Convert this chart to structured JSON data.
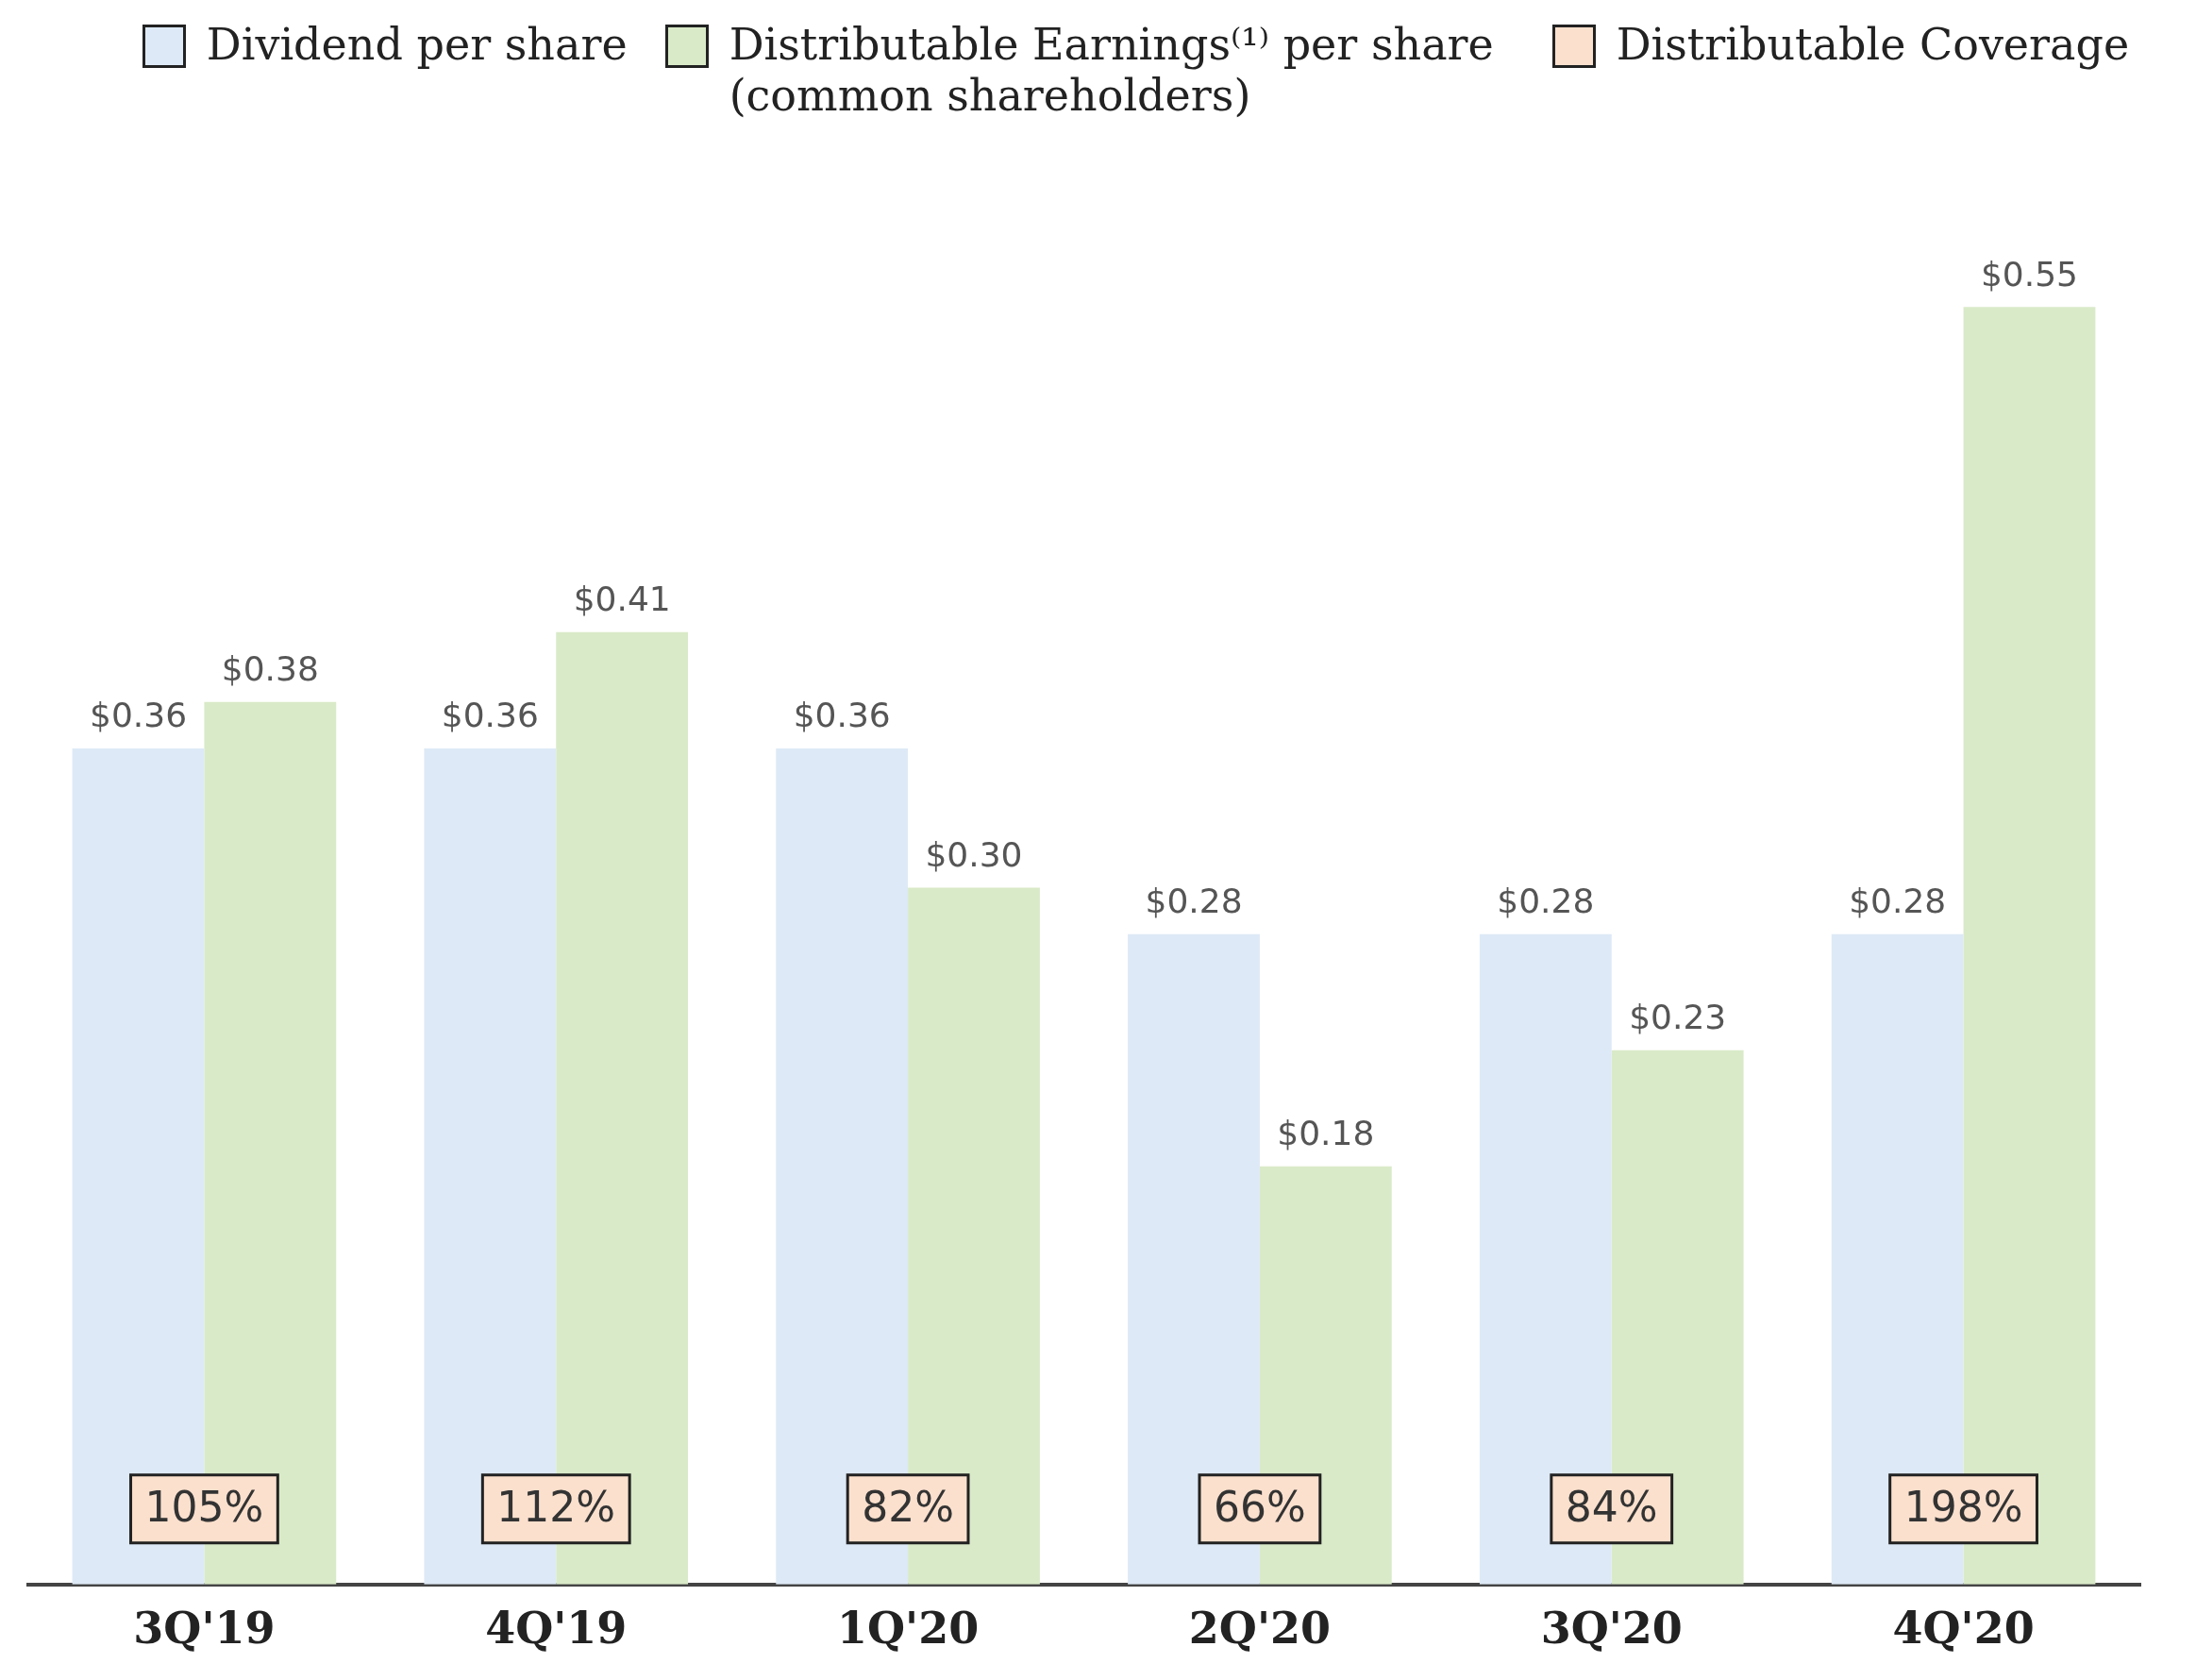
{
  "chart_data": {
    "type": "bar",
    "categories": [
      "3Q'19",
      "4Q'19",
      "1Q'20",
      "2Q'20",
      "3Q'20",
      "4Q'20"
    ],
    "series": [
      {
        "name": "Dividend per share",
        "color": "#dde9f6",
        "values": [
          0.36,
          0.36,
          0.36,
          0.28,
          0.28,
          0.28
        ],
        "value_labels": [
          "$0.36",
          "$0.36",
          "$0.36",
          "$0.28",
          "$0.28",
          "$0.28"
        ]
      },
      {
        "name": "Distributable Earnings⁽¹⁾ per share (common shareholders)",
        "color": "#d9eac8",
        "values": [
          0.38,
          0.41,
          0.3,
          0.18,
          0.23,
          0.55
        ],
        "value_labels": [
          "$0.38",
          "$0.41",
          "$0.30",
          "$0.18",
          "$0.23",
          "$0.55"
        ]
      }
    ],
    "annotations": [
      "Distributable Coverage",
      {
        "text": "105%",
        "x": "3Q'19"
      },
      {
        "text": "112%",
        "x": "4Q'19"
      },
      {
        "text": "82%",
        "x": "1Q'20"
      },
      {
        "text": "66%",
        "x": "2Q'20"
      },
      {
        "text": "84%",
        "x": "3Q'20"
      },
      {
        "text": "198%",
        "x": "4Q'20"
      }
    ],
    "legend": "top",
    "grid": false
  }
}
